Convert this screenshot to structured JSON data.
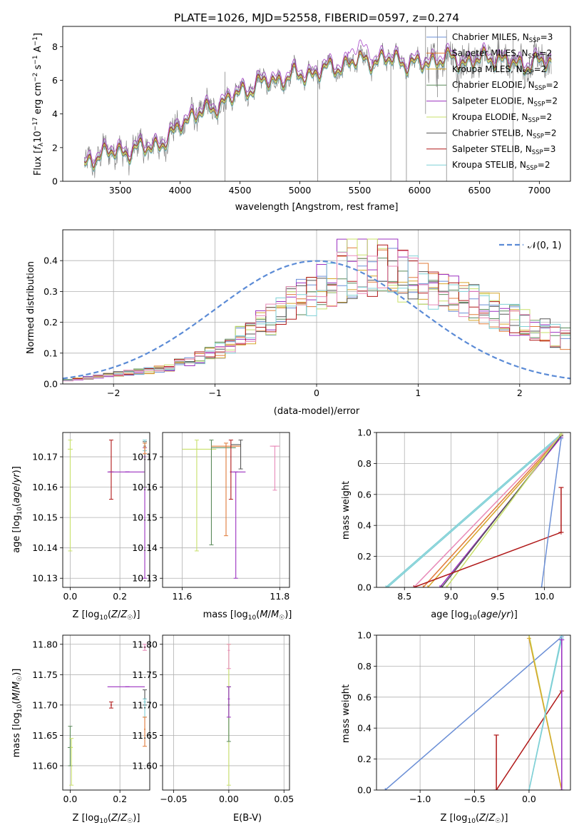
{
  "figure": {
    "title": "PLATE=1026, MJD=52558, FIBERID=0597, z=0.274"
  },
  "colors": {
    "chabrier_miles": "#6b8fd6",
    "salpeter_miles": "#e07b39",
    "kroupa_miles": "#d6a52a",
    "chabrier_elodie": "#5a8a5a",
    "salpeter_elodie": "#9b30c0",
    "kroupa_elodie": "#c8e06a",
    "chabrier_stelib": "#555555",
    "salpeter_stelib": "#b01818",
    "kroupa_stelib": "#7fd0d6",
    "pink": "#e88ab8",
    "gaussian": "#5b8bd6",
    "data_gray": "#777777"
  },
  "chart_data": [
    {
      "id": "spectrum",
      "type": "line",
      "title": "PLATE=1026, MJD=52558, FIBERID=0597, z=0.274",
      "xlabel": "wavelength [Angstrom, rest frame]",
      "ylabel": "Flux [f_λ 10⁻¹⁷ erg cm⁻² s⁻¹ A⁻¹]",
      "xlim": [
        3020,
        7260
      ],
      "ylim": [
        0,
        9.2
      ],
      "xticks": [
        3500,
        4000,
        4500,
        5000,
        5500,
        6000,
        6500,
        7000
      ],
      "yticks": [
        0,
        2,
        4,
        6,
        8
      ],
      "grid": false,
      "legend": "top-right",
      "legend_entries": [
        "Chabrier MILES, N_SSP=3",
        "Salpeter MILES, N_SSP=2",
        "Kroupa MILES, N_SSP=2",
        "Chabrier ELODIE, N_SSP=2",
        "Salpeter ELODIE, N_SSP=2",
        "Kroupa ELODIE, N_SSP=2",
        "Chabrier STELIB, N_SSP=2",
        "Salpeter STELIB, N_SSP=3",
        "Kroupa STELIB, N_SSP=2"
      ],
      "continuum": {
        "x": [
          3200,
          3250,
          3400,
          3500,
          3600,
          3700,
          3800,
          3900,
          3950,
          4000,
          4100,
          4200,
          4300,
          4400,
          4500,
          4600,
          4700,
          4800,
          4900,
          5000,
          5100,
          5200,
          5300,
          5400,
          5500,
          5600,
          5700,
          5800,
          5900,
          6000,
          6100,
          6200,
          6300,
          6400,
          6500,
          6600,
          6700,
          6800,
          6900,
          7000,
          7100
        ],
        "y": [
          0.8,
          1.4,
          1.7,
          1.8,
          1.8,
          2.0,
          2.2,
          2.4,
          2.8,
          3.5,
          3.9,
          4.1,
          4.5,
          4.8,
          5.3,
          5.6,
          5.9,
          6.0,
          6.2,
          6.3,
          6.4,
          6.6,
          6.8,
          7.0,
          7.2,
          7.2,
          7.2,
          7.3,
          7.0,
          6.9,
          7.2,
          7.3,
          7.2,
          7.1,
          7.2,
          7.4,
          7.2,
          6.9,
          7.0,
          7.1,
          7.0
        ]
      },
      "model_offsets": [
        0.1,
        0.05,
        -0.1,
        0.0,
        0.3,
        -0.05,
        -0.15,
        0.05,
        -0.2
      ]
    },
    {
      "id": "residuals",
      "type": "histogram",
      "xlabel": "(data-model)/error",
      "ylabel": "Normed distribution",
      "xlim": [
        -2.5,
        2.5
      ],
      "ylim": [
        0,
        0.5
      ],
      "xticks": [
        -2,
        -1,
        0,
        1,
        2
      ],
      "yticks": [
        0.0,
        0.1,
        0.2,
        0.3,
        0.4
      ],
      "grid": true,
      "legend": "top-right",
      "legend_entries": [
        "𝒩(0, 1)"
      ],
      "gaussian": {
        "mean": 0,
        "sigma": 1
      },
      "bin_width": 0.1,
      "envelope": {
        "x": [
          -2.5,
          -2.0,
          -1.5,
          -1.0,
          -0.7,
          -0.4,
          -0.2,
          0.0,
          0.3,
          0.5,
          0.7,
          1.0,
          1.3,
          1.6,
          2.0,
          2.5
        ],
        "y": [
          0.01,
          0.03,
          0.05,
          0.1,
          0.16,
          0.22,
          0.27,
          0.3,
          0.36,
          0.38,
          0.37,
          0.33,
          0.3,
          0.26,
          0.2,
          0.14
        ]
      }
    },
    {
      "id": "age_vs_z",
      "type": "scatter",
      "xlabel": "Z [log₁₀(Z/Z☉)]",
      "ylabel": "age  [log₁₀(age/yr)]",
      "xlim": [
        -0.03,
        0.32
      ],
      "ylim": [
        10.127,
        10.178
      ],
      "xticks": [
        0.0,
        0.2
      ],
      "yticks": [
        10.13,
        10.14,
        10.15,
        10.16,
        10.17
      ],
      "grid": true,
      "points": [
        {
          "x": 0.0,
          "y": 10.1725,
          "xerr": 0.01,
          "ylo": 10.139,
          "yhi": 10.1755,
          "color": "kroupa_elodie"
        },
        {
          "x": 0.165,
          "y": 10.165,
          "xerr": 0.01,
          "ylo": 10.156,
          "yhi": 10.1755,
          "color": "salpeter_stelib"
        },
        {
          "x": 0.23,
          "y": 10.165,
          "xlo": 0.15,
          "xhi": 0.3,
          "ylo": 10.165,
          "yhi": 10.165,
          "color": "salpeter_elodie"
        },
        {
          "x": 0.3,
          "y": 10.17,
          "xerr": 0.005,
          "ylo": 10.13,
          "yhi": 10.173,
          "color": "salpeter_elodie"
        },
        {
          "x": 0.3,
          "y": 10.1735,
          "xerr": 0.005,
          "ylo": 10.16,
          "yhi": 10.175,
          "color": "chabrier_stelib"
        },
        {
          "x": 0.3,
          "y": 10.1745,
          "xerr": 0.005,
          "ylo": 10.172,
          "yhi": 10.1755,
          "color": "kroupa_stelib"
        },
        {
          "x": 0.3,
          "y": 10.173,
          "xerr": 0.005,
          "ylo": 10.171,
          "yhi": 10.1745,
          "color": "salpeter_miles"
        }
      ]
    },
    {
      "id": "age_vs_mass",
      "type": "scatter",
      "xlabel": "mass [log₁₀(M/M☉)]",
      "ylabel": "",
      "xlim": [
        11.56,
        11.82
      ],
      "ylim": [
        10.127,
        10.178
      ],
      "xticks": [
        11.6,
        11.8
      ],
      "yticks": [
        10.13,
        10.14,
        10.15,
        10.16,
        10.17
      ],
      "grid": true,
      "points": [
        {
          "x": 11.63,
          "y": 10.1725,
          "xlo": 11.6,
          "xhi": 11.67,
          "ylo": 10.139,
          "yhi": 10.1755,
          "color": "kroupa_elodie"
        },
        {
          "x": 11.66,
          "y": 10.173,
          "xlo": 11.66,
          "xhi": 11.71,
          "ylo": 10.141,
          "yhi": 10.1755,
          "color": "chabrier_elodie"
        },
        {
          "x": 11.69,
          "y": 10.1735,
          "xlo": 11.66,
          "xhi": 11.72,
          "ylo": 10.144,
          "yhi": 10.1745,
          "color": "salpeter_miles"
        },
        {
          "x": 11.7,
          "y": 10.165,
          "xerr": 0.002,
          "ylo": 10.156,
          "yhi": 10.1755,
          "color": "salpeter_stelib"
        },
        {
          "x": 11.71,
          "y": 10.165,
          "xlo": 11.7,
          "xhi": 11.73,
          "ylo": 10.13,
          "yhi": 10.165,
          "color": "salpeter_elodie"
        },
        {
          "x": 11.72,
          "y": 10.174,
          "xlo": 11.7,
          "xhi": 11.72,
          "ylo": 10.166,
          "yhi": 10.1755,
          "color": "chabrier_stelib"
        },
        {
          "x": 11.79,
          "y": 10.1735,
          "xlo": 11.78,
          "xhi": 11.8,
          "ylo": 10.159,
          "yhi": 10.1735,
          "color": "pink"
        }
      ]
    },
    {
      "id": "mass_weight_vs_age",
      "type": "line",
      "xlabel": "age  [log₁₀(age/yr)]",
      "ylabel": "mass weight",
      "xlim": [
        8.2,
        10.28
      ],
      "ylim": [
        0,
        1.0
      ],
      "xticks": [
        8.5,
        9.0,
        9.5,
        10.0
      ],
      "yticks": [
        0.0,
        0.2,
        0.4,
        0.6,
        0.8,
        1.0
      ],
      "grid": true,
      "segments": [
        {
          "x": [
            8.3,
            10.18
          ],
          "y": [
            0.0,
            0.99
          ],
          "color": "kroupa_stelib"
        },
        {
          "x": [
            8.32,
            10.18
          ],
          "y": [
            0.0,
            0.98
          ],
          "color": "kroupa_stelib"
        },
        {
          "x": [
            8.6,
            10.18
          ],
          "y": [
            0.0,
            0.985
          ],
          "color": "pink"
        },
        {
          "x": [
            8.7,
            10.18
          ],
          "y": [
            0.0,
            0.98
          ],
          "color": "salpeter_miles"
        },
        {
          "x": [
            8.75,
            10.18
          ],
          "y": [
            0.0,
            0.97
          ],
          "color": "kroupa_miles"
        },
        {
          "x": [
            8.88,
            10.18
          ],
          "y": [
            0.0,
            0.97
          ],
          "color": "salpeter_elodie"
        },
        {
          "x": [
            8.9,
            10.18
          ],
          "y": [
            0.0,
            0.98
          ],
          "color": "chabrier_stelib"
        },
        {
          "x": [
            8.95,
            10.18
          ],
          "y": [
            0.0,
            0.99
          ],
          "color": "kroupa_elodie"
        },
        {
          "x": [
            8.6,
            10.18
          ],
          "y": [
            0.0,
            0.355
          ],
          "color": "salpeter_stelib"
        },
        {
          "x": [
            9.97,
            10.18
          ],
          "y": [
            0.0,
            0.96
          ],
          "color": "chabrier_miles"
        }
      ],
      "errorbars": [
        {
          "x": 10.18,
          "ylo": 0.355,
          "yhi": 0.645,
          "color": "salpeter_stelib"
        }
      ]
    },
    {
      "id": "mass_vs_z",
      "type": "scatter",
      "xlabel": "Z [log₁₀(Z/Z☉)]",
      "ylabel": "mass [log₁₀(M/M☉)]",
      "xlim": [
        -0.03,
        0.32
      ],
      "ylim": [
        11.56,
        11.815
      ],
      "xticks": [
        0.0,
        0.2
      ],
      "yticks": [
        11.6,
        11.65,
        11.7,
        11.75,
        11.8
      ],
      "grid": true,
      "points": [
        {
          "x": 0.0,
          "y": 11.63,
          "xlo": -0.01,
          "xhi": 0.01,
          "ylo": 11.6,
          "yhi": 11.665,
          "color": "chabrier_elodie"
        },
        {
          "x": 0.005,
          "y": 11.63,
          "xerr": 0.005,
          "ylo": 11.568,
          "yhi": 11.645,
          "color": "kroupa_elodie"
        },
        {
          "x": 0.165,
          "y": 11.7,
          "xerr": 0.003,
          "ylo": 11.695,
          "yhi": 11.705,
          "color": "salpeter_stelib"
        },
        {
          "x": 0.23,
          "y": 11.73,
          "xlo": 0.15,
          "xhi": 0.3,
          "ylo": 11.73,
          "yhi": 11.73,
          "color": "salpeter_elodie"
        },
        {
          "x": 0.3,
          "y": 11.71,
          "xerr": 0.005,
          "ylo": 11.7,
          "yhi": 11.725,
          "color": "chabrier_stelib"
        },
        {
          "x": 0.3,
          "y": 11.705,
          "xerr": 0.005,
          "ylo": 11.68,
          "yhi": 11.71,
          "color": "kroupa_stelib"
        },
        {
          "x": 0.3,
          "y": 11.66,
          "xerr": 0.003,
          "ylo": 11.632,
          "yhi": 11.68,
          "color": "salpeter_miles"
        },
        {
          "x": 0.3,
          "y": 11.795,
          "xerr": 0.006,
          "ylo": 11.79,
          "yhi": 11.8,
          "color": "pink"
        }
      ]
    },
    {
      "id": "mass_vs_ebv",
      "type": "scatter",
      "xlabel": "E(B-V)",
      "ylabel": "",
      "xlim": [
        -0.06,
        0.055
      ],
      "ylim": [
        11.56,
        11.815
      ],
      "xticks": [
        -0.05,
        0.0,
        0.05
      ],
      "yticks": [
        11.6,
        11.65,
        11.7,
        11.75,
        11.8
      ],
      "grid": true,
      "points": [
        {
          "x": 0.0,
          "y": 11.7,
          "xerr": 0.001,
          "ylo": 11.568,
          "yhi": 11.8,
          "color": "kroupa_elodie"
        },
        {
          "x": 0.0,
          "y": 11.7,
          "xerr": 0.001,
          "ylo": 11.64,
          "yhi": 11.73,
          "color": "chabrier_elodie"
        },
        {
          "x": 0.0,
          "y": 11.71,
          "xerr": 0.001,
          "ylo": 11.68,
          "yhi": 11.73,
          "color": "salpeter_elodie"
        },
        {
          "x": 0.0,
          "y": 11.79,
          "xerr": 0.001,
          "ylo": 11.76,
          "yhi": 11.8,
          "color": "pink"
        }
      ]
    },
    {
      "id": "mass_weight_vs_z",
      "type": "line",
      "xlabel": "Z [log₁₀(Z/Z☉)]",
      "ylabel": "mass weight",
      "xlim": [
        -1.4,
        0.38
      ],
      "ylim": [
        0,
        1.0
      ],
      "xticks": [
        -1.0,
        -0.5,
        0.0
      ],
      "yticks": [
        0.0,
        0.2,
        0.4,
        0.6,
        0.8,
        1.0
      ],
      "grid": true,
      "segments": [
        {
          "x": [
            -1.32,
            0.3
          ],
          "y": [
            0.0,
            0.99
          ],
          "color": "chabrier_miles"
        },
        {
          "x": [
            -0.3,
            0.3
          ],
          "y": [
            0.0,
            0.64
          ],
          "color": "salpeter_stelib"
        },
        {
          "x": [
            0.0,
            0.3
          ],
          "y": [
            1.0,
            0.0
          ],
          "color": "kroupa_elodie"
        },
        {
          "x": [
            0.0,
            0.3
          ],
          "y": [
            0.98,
            0.0
          ],
          "color": "kroupa_miles"
        },
        {
          "x": [
            0.0,
            0.3
          ],
          "y": [
            0.0,
            1.0
          ],
          "color": "kroupa_stelib"
        },
        {
          "x": [
            0.0,
            0.3
          ],
          "y": [
            0.0,
            0.98
          ],
          "color": "kroupa_stelib"
        },
        {
          "x": [
            0.3,
            0.3
          ],
          "y": [
            0.0,
            0.97
          ],
          "color": "salpeter_elodie"
        }
      ],
      "errorbars": [
        {
          "x": -0.3,
          "ylo": 0.0,
          "yhi": 0.355,
          "color": "salpeter_stelib"
        },
        {
          "x": 0.3,
          "ylo": 0.0,
          "yhi": 0.97,
          "color": "salpeter_elodie"
        }
      ]
    }
  ]
}
